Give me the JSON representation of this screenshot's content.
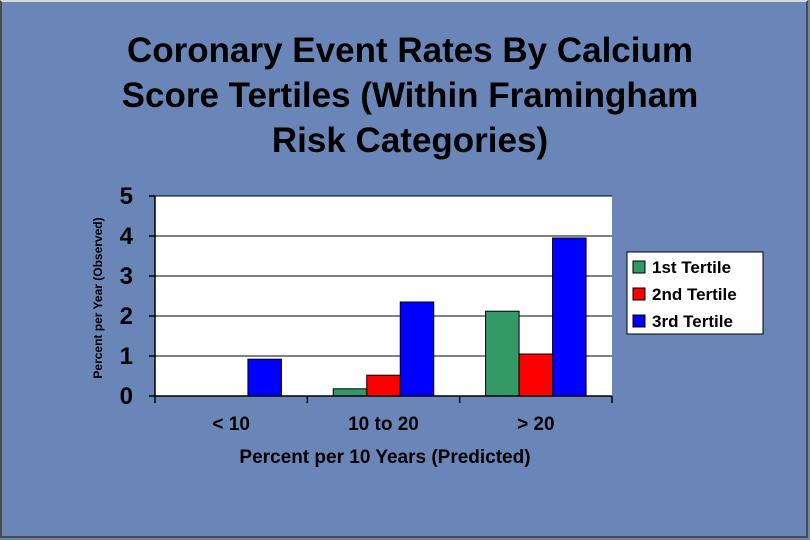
{
  "slide": {
    "title_lines": [
      "Coronary Event Rates By Calcium",
      "Score Tertiles (Within Framingham",
      "Risk Categories)"
    ]
  },
  "chart_data": {
    "type": "bar",
    "title": "Coronary Event Rates By Calcium Score Tertiles (Within Framingham Risk Categories)",
    "categories": [
      "< 10",
      "10 to 20",
      "> 20"
    ],
    "series": [
      {
        "name": "1st Tertile",
        "color": "#339966",
        "values": [
          0.0,
          0.18,
          2.12
        ]
      },
      {
        "name": "2nd Tertile",
        "color": "#ff0000",
        "values": [
          0.0,
          0.52,
          1.05
        ]
      },
      {
        "name": "3rd Tertile",
        "color": "#0000ff",
        "values": [
          0.92,
          2.35,
          3.95
        ]
      }
    ],
    "xlabel": "Percent per 10 Years (Predicted)",
    "ylabel": "Percent per Year (Observed)",
    "ylim": [
      0,
      5
    ],
    "yticks": [
      "0",
      "1",
      "2",
      "3",
      "4",
      "5"
    ],
    "grid": true,
    "legend": "right"
  }
}
